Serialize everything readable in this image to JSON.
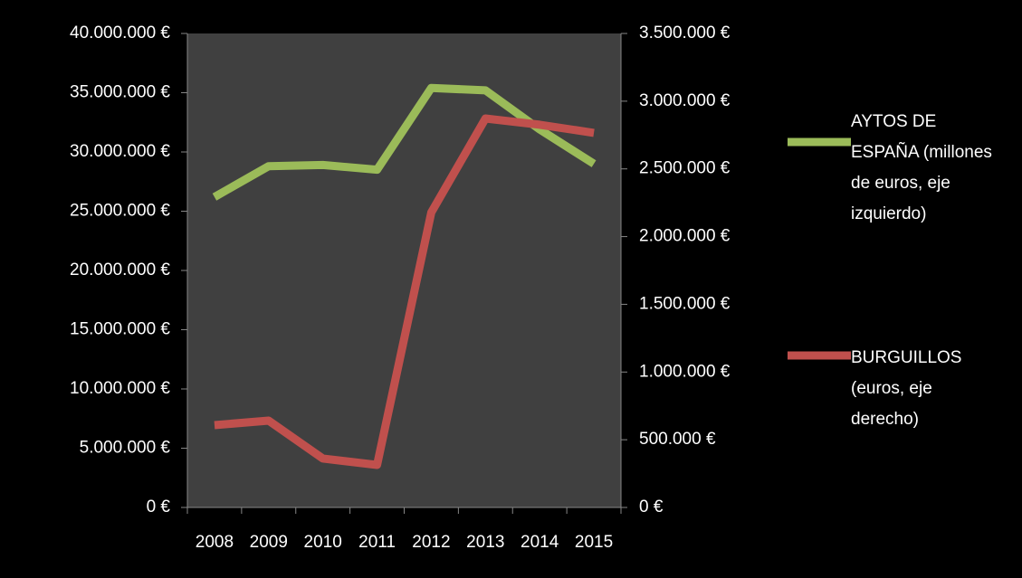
{
  "chart_data": {
    "type": "line",
    "categories": [
      "2008",
      "2009",
      "2010",
      "2011",
      "2012",
      "2013",
      "2014",
      "2015"
    ],
    "series": [
      {
        "name": "AYTOS DE ESPAÑA (millones de euros, eje izquierdo)",
        "color": "#9bbb59",
        "values": [
          26200000,
          28800000,
          28900000,
          28500000,
          35400000,
          35200000,
          31900000,
          29000000
        ]
      },
      {
        "name": "BURGUILLOS (euros, eje derecho)",
        "color": "#c0504d",
        "axis": "y2",
        "values": [
          608000,
          641000,
          361000,
          314000,
          2178000,
          2872000,
          2826000,
          2766000
        ]
      }
    ],
    "ylim": [
      0,
      40000000
    ],
    "yticks": [
      {
        "value": 0,
        "label": "0 €"
      },
      {
        "value": 5000000,
        "label": "5.000.000 €"
      },
      {
        "value": 10000000,
        "label": "10.000.000 €"
      },
      {
        "value": 15000000,
        "label": "15.000.000 €"
      },
      {
        "value": 20000000,
        "label": "20.000.000 €"
      },
      {
        "value": 25000000,
        "label": "25.000.000 €"
      },
      {
        "value": 30000000,
        "label": "30.000.000 €"
      },
      {
        "value": 35000000,
        "label": "35.000.000 €"
      },
      {
        "value": 40000000,
        "label": "40.000.000 €"
      }
    ],
    "y2lim": [
      0,
      3500000
    ],
    "y2ticks": [
      {
        "value": 0,
        "label": "0 €"
      },
      {
        "value": 500000,
        "label": "500.000 €"
      },
      {
        "value": 1000000,
        "label": "1.000.000 €"
      },
      {
        "value": 1500000,
        "label": "1.500.000 €"
      },
      {
        "value": 2000000,
        "label": "2.000.000 €"
      },
      {
        "value": 2500000,
        "label": "2.500.000 €"
      },
      {
        "value": 3000000,
        "label": "3.000.000 €"
      },
      {
        "value": 3500000,
        "label": "3.500.000 €"
      }
    ],
    "grid": false,
    "legend": "right"
  }
}
